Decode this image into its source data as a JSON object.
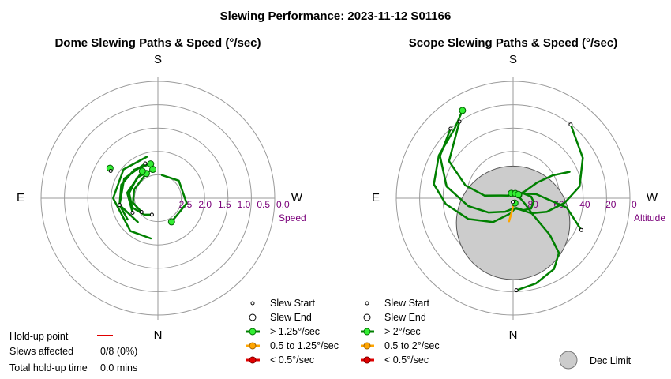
{
  "title": "Slewing Performance: 2023-11-12 S01166",
  "colors": {
    "fast": "#008000",
    "medium": "#ffa500",
    "slow": "#e00000",
    "marker_green": "#33ee33",
    "grid": "#9a9a9a",
    "axis_text": "#7a007a",
    "dec_limit_fill": "#cccccc"
  },
  "chart_data": [
    {
      "type": "polar",
      "title": "Dome Slewing Paths & Speed (°/sec)",
      "directions": {
        "top": "S",
        "bottom": "N",
        "left": "E",
        "right": "W"
      },
      "radial_axis": {
        "name": "Speed",
        "ticks": [
          "2.5",
          "2.0",
          "1.5",
          "1.0",
          "0.5",
          "0.0"
        ],
        "range": [
          3.0,
          0.0
        ],
        "inverted": true
      },
      "legend": [
        "Slew Start",
        "Slew End",
        "> 1.25°/sec",
        "0.5 to 1.25°/sec",
        "< 0.5°/sec"
      ],
      "paths": [
        {
          "speed_class": "fast",
          "points": [
            [
              -12,
              2.1
            ],
            [
              -40,
              2.05
            ],
            [
              -70,
              2.0
            ],
            [
              -100,
              2.0
            ],
            [
              -125,
              2.05
            ]
          ]
        },
        {
          "speed_class": "fast",
          "points": [
            [
              -10,
              2.25
            ],
            [
              -45,
              2.25
            ],
            [
              -80,
              2.25
            ],
            [
              -110,
              2.3
            ],
            [
              -140,
              2.45
            ],
            [
              -160,
              2.55
            ]
          ]
        },
        {
          "speed_class": "fast",
          "points": [
            [
              -20,
              2.05
            ],
            [
              -60,
              2.0
            ],
            [
              -100,
              2.0
            ],
            [
              -140,
              2.2
            ]
          ]
        },
        {
          "speed_class": "fast",
          "points": [
            [
              -15,
              1.9
            ],
            [
              -50,
              1.85
            ],
            [
              -90,
              1.85
            ],
            [
              -140,
              1.9
            ],
            [
              -170,
              1.95
            ]
          ]
        },
        {
          "speed_class": "fast",
          "points": [
            [
              -25,
              2.3
            ],
            [
              -70,
              2.35
            ],
            [
              -100,
              2.35
            ],
            [
              -130,
              2.45
            ]
          ]
        },
        {
          "speed_class": "fast",
          "points": [
            [
              -30,
              2.2
            ],
            [
              -80,
              2.2
            ],
            [
              -120,
              2.25
            ]
          ]
        },
        {
          "speed_class": "fast",
          "points": [
            [
              10,
              2.4
            ],
            [
              50,
              2.3
            ],
            [
              100,
              2.25
            ],
            [
              150,
              2.3
            ]
          ]
        },
        {
          "speed_class": "medium",
          "points": [
            [
              -60,
              1.6
            ],
            [
              -58,
              1.55
            ]
          ]
        }
      ],
      "starts": [
        [
          -100,
          2.0
        ],
        [
          -20,
          2.05
        ],
        [
          -60,
          1.6
        ],
        [
          -160,
          2.55
        ],
        [
          -130,
          2.45
        ],
        [
          -120,
          2.25
        ]
      ],
      "ends": [
        [
          -12,
          2.1
        ],
        [
          -10,
          2.25
        ],
        [
          -25,
          2.3
        ],
        [
          -30,
          2.2
        ],
        [
          150,
          2.3
        ],
        [
          -58,
          1.55
        ]
      ]
    },
    {
      "type": "polar",
      "title": "Scope Slewing Paths & Speed (°/sec)",
      "directions": {
        "top": "S",
        "bottom": "N",
        "left": "E",
        "right": "W"
      },
      "radial_axis": {
        "name": "Altitude",
        "ticks": [
          "80",
          "60",
          "40",
          "20",
          "0"
        ],
        "range": [
          90,
          0
        ],
        "inverted": true
      },
      "legend": [
        "Slew Start",
        "Slew End",
        "> 2°/sec",
        "0.5 to 2°/sec",
        "< 0.5°/sec",
        "Dec Limit"
      ],
      "dec_limit": {
        "azimuth": 0,
        "altitude": 71,
        "radius_deg": 19
      },
      "paths": [
        {
          "speed_class": "fast",
          "points": [
            [
              178,
              19
            ],
            [
              165,
              22
            ],
            [
              150,
              27
            ],
            [
              140,
              35
            ],
            [
              135,
              50
            ],
            [
              130,
              70
            ],
            [
              115,
              80
            ],
            [
              95,
              84
            ],
            [
              70,
              86
            ],
            [
              60,
              85
            ]
          ]
        },
        {
          "speed_class": "fast",
          "points": [
            [
              -35,
              18
            ],
            [
              -60,
              33
            ],
            [
              -75,
              52
            ],
            [
              -85,
              68
            ],
            [
              -78,
              80
            ],
            [
              -60,
              86
            ],
            [
              -20,
              86
            ]
          ]
        },
        {
          "speed_class": "fast",
          "points": [
            [
              115,
              32
            ],
            [
              100,
              48
            ],
            [
              80,
              72
            ],
            [
              70,
              80
            ],
            [
              35,
              85
            ],
            [
              25,
              86
            ]
          ]
        },
        {
          "speed_class": "fast",
          "points": [
            [
              65,
              42
            ],
            [
              60,
              55
            ],
            [
              57,
              68
            ],
            [
              60,
              80
            ],
            [
              55,
              85
            ]
          ]
        },
        {
          "speed_class": "fast",
          "points": [
            [
              38,
              18
            ],
            [
              60,
              28
            ],
            [
              80,
              38
            ],
            [
              95,
              50
            ],
            [
              112,
              62
            ],
            [
              130,
              72
            ],
            [
              150,
              80
            ],
            [
              170,
              82
            ],
            [
              -170,
              78
            ],
            [
              -140,
              66
            ],
            [
              -115,
              52
            ],
            [
              -95,
              38
            ],
            [
              -80,
              28
            ],
            [
              -60,
              24
            ],
            [
              -40,
              20
            ],
            [
              -30,
              12
            ]
          ]
        },
        {
          "speed_class": "fast",
          "points": [
            [
              -42,
              18
            ],
            [
              -60,
              25
            ],
            [
              -80,
              38
            ],
            [
              -100,
              55
            ],
            [
              -120,
              68
            ],
            [
              -150,
              78
            ],
            [
              -180,
              82
            ],
            [
              160,
              82
            ],
            [
              140,
              78
            ],
            [
              120,
              74
            ],
            [
              100,
              74
            ],
            [
              85,
              76
            ],
            [
              60,
              82
            ]
          ]
        },
        {
          "speed_class": "medium",
          "points": [
            [
              -170,
              72
            ],
            [
              -175,
              80
            ],
            [
              -180,
              84
            ],
            [
              175,
              86
            ],
            [
              160,
              86
            ]
          ]
        }
      ],
      "starts": [
        [
          178,
          19
        ],
        [
          115,
          32
        ],
        [
          38,
          18
        ],
        [
          -42,
          18
        ],
        [
          -35,
          18
        ],
        [
          -175,
          87
        ]
      ],
      "ends": [
        [
          60,
          85
        ],
        [
          -20,
          86
        ],
        [
          25,
          86
        ],
        [
          55,
          85
        ],
        [
          -30,
          12
        ],
        [
          160,
          86
        ]
      ]
    }
  ],
  "legend_left": {
    "start": "Slew Start",
    "end": "Slew End",
    "fast": "> 1.25°/sec",
    "medium": "0.5 to 1.25°/sec",
    "slow": "< 0.5°/sec"
  },
  "legend_right": {
    "start": "Slew Start",
    "end": "Slew End",
    "fast": "> 2°/sec",
    "medium": "0.5 to 2°/sec",
    "slow": "< 0.5°/sec",
    "dec_limit": "Dec Limit"
  },
  "holdup": {
    "point_label": "Hold-up point",
    "slews_label": "Slews affected",
    "slews_value": "0/8 (0%)",
    "time_label": "Total hold-up time",
    "time_value": "0.0 mins"
  }
}
